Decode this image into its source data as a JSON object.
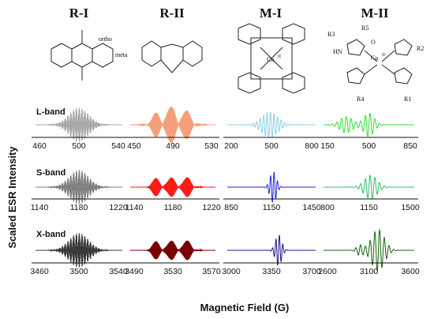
{
  "columns": [
    {
      "header": "R-I",
      "labels": [
        "ortho",
        "meta"
      ]
    },
    {
      "header": "R-II",
      "labels": []
    },
    {
      "header": "M-I",
      "labels": [
        "Cu",
        "II"
      ]
    },
    {
      "header": "M-II",
      "labels": [
        "R3",
        "R5",
        "R2",
        "R4",
        "R1",
        "Cu",
        "II",
        "HN",
        "O"
      ]
    }
  ],
  "bands": [
    "L-band",
    "S-band",
    "X-band"
  ],
  "ylabel": "Scaled ESR Intensity",
  "xlabel": "Magnetic Field (G)",
  "ticks": [
    [
      [
        "460",
        "500",
        "540"
      ],
      [
        "450",
        "490",
        "530"
      ],
      [
        "200",
        "500",
        "800"
      ],
      [
        "150",
        "500",
        "850"
      ]
    ],
    [
      [
        "1140",
        "1180",
        "1220"
      ],
      [
        "1140",
        "1180",
        "1220"
      ],
      [
        "850",
        "1150",
        "1450"
      ],
      [
        "800",
        "1150",
        "1500"
      ]
    ],
    [
      [
        "3460",
        "3500",
        "3540"
      ],
      [
        "3490",
        "3530",
        "3570"
      ],
      [
        "3000",
        "3350",
        "3700"
      ],
      [
        "2600",
        "3100",
        "3600"
      ]
    ]
  ],
  "colors": {
    "R-I": [
      "#a9a9a9",
      "#808080",
      "#3a3a3a"
    ],
    "R-II": [
      "#f5a07a",
      "#ff1a1a",
      "#7a0000"
    ],
    "M-I": [
      "#8fd0ea",
      "#2222dd",
      "#1a1a88"
    ],
    "M-II": [
      "#33dd33",
      "#33bb66",
      "#116611"
    ]
  },
  "chart_data": {
    "type": "line",
    "xlabel": "Magnetic Field (G)",
    "ylabel": "Scaled ESR Intensity",
    "panels": [
      {
        "band": "L-band",
        "samples": [
          "R-I",
          "R-II",
          "M-I",
          "M-II"
        ]
      },
      {
        "band": "S-band",
        "samples": [
          "R-I",
          "R-II",
          "M-I",
          "M-II"
        ]
      },
      {
        "band": "X-band",
        "samples": [
          "R-I",
          "R-II",
          "M-I",
          "M-II"
        ]
      }
    ]
  }
}
